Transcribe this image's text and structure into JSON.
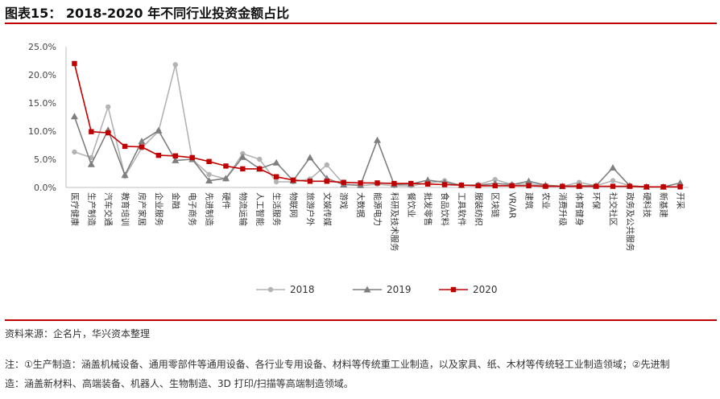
{
  "header": {
    "title": "图表15： 2018-2020 年不同行业投资金额占比"
  },
  "footer": {
    "source": "资料来源：企名片，华兴资本整理",
    "note_line1": "注：①生产制造：涵盖机械设备、通用零部件等通用设备、各行业专用设备、材料等传统重工业制造，以及家具、纸、木材等传统轻工业制造领域；②先进制",
    "note_line2": "造：涵盖新材料、高端装备、机器人、生物制造、3D 打印/扫描等高端制造领域。"
  },
  "colors": {
    "s2018": "#b3b3b3",
    "s2019": "#7f7f7f",
    "s2020": "#c00000",
    "rule": "#c00000",
    "axis": "#bfbfbf"
  },
  "chart_data": {
    "type": "line",
    "title": "",
    "xlabel": "",
    "ylabel": "",
    "ylim": [
      0,
      25
    ],
    "yticks": [
      "0.0%",
      "5.0%",
      "10.0%",
      "15.0%",
      "20.0%",
      "25.0%"
    ],
    "grid": false,
    "legend_position": "bottom",
    "categories": [
      "医疗健康",
      "生产制造",
      "汽车交通",
      "教育培训",
      "房产家居",
      "企业服务",
      "金融",
      "电子商务",
      "先进制造",
      "硬件",
      "物流运输",
      "人工智能",
      "生活服务",
      "物联网",
      "旅游户外",
      "文娱传媒",
      "游戏",
      "大数据",
      "能源电力",
      "科研及技术服务",
      "餐饮业",
      "批发零售",
      "食品饮料",
      "工具软件",
      "服装纺织",
      "区块链",
      "VR/AR",
      "建筑",
      "农业",
      "消费升级",
      "体育健身",
      "环保",
      "社交社区",
      "政务及公共服务",
      "硬科技",
      "新基建",
      "开采"
    ],
    "series": [
      {
        "name": "2018",
        "marker": "circle",
        "values": [
          6.3,
          5.3,
          14.3,
          2.0,
          7.0,
          10.0,
          21.8,
          5.0,
          2.3,
          1.5,
          6.0,
          5.0,
          1.0,
          1.0,
          1.5,
          4.0,
          0.6,
          0.3,
          0.6,
          0.3,
          0.3,
          0.8,
          1.2,
          0.3,
          0.5,
          1.4,
          0.5,
          0.6,
          0.3,
          0.2,
          0.9,
          0.3,
          1.2,
          0.3,
          0.1,
          0.1,
          0.1
        ]
      },
      {
        "name": "2019",
        "marker": "triangle",
        "values": [
          12.6,
          4.1,
          10.2,
          2.2,
          8.2,
          10.1,
          4.8,
          5.0,
          1.2,
          1.6,
          5.4,
          3.3,
          4.4,
          1.2,
          5.3,
          1.6,
          0.5,
          0.4,
          8.4,
          0.5,
          0.6,
          1.3,
          0.9,
          0.4,
          0.4,
          0.7,
          0.5,
          1.1,
          0.4,
          0.2,
          0.3,
          0.3,
          3.5,
          0.3,
          0.1,
          0.1,
          0.8
        ]
      },
      {
        "name": "2020",
        "marker": "square",
        "values": [
          22.0,
          9.9,
          9.7,
          7.3,
          7.2,
          5.7,
          5.6,
          5.3,
          4.6,
          3.8,
          3.3,
          3.3,
          1.9,
          1.3,
          1.1,
          1.1,
          0.9,
          0.8,
          0.8,
          0.7,
          0.7,
          0.6,
          0.5,
          0.4,
          0.3,
          0.3,
          0.3,
          0.3,
          0.2,
          0.2,
          0.2,
          0.2,
          0.2,
          0.2,
          0.1,
          0.1,
          0.1
        ]
      }
    ]
  }
}
